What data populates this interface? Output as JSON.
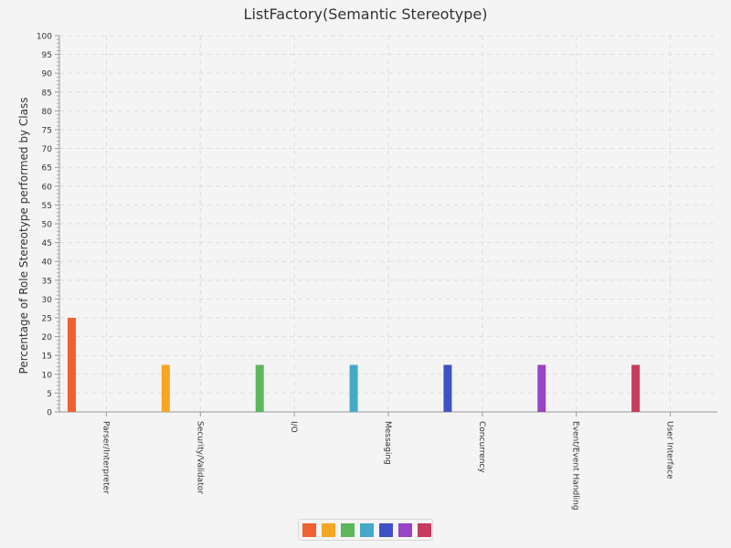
{
  "chart_data": {
    "type": "bar",
    "title": "ListFactory(Semantic Stereotype)",
    "xlabel": "",
    "ylabel": "Percentage of Role Stereotype performed by Class",
    "ylim": [
      0,
      100
    ],
    "y_major_step": 5,
    "grid": true,
    "legend_position": "bottom",
    "categories": [
      "Parser/Interpreter",
      "Security/Validator",
      "I/O",
      "Messaging",
      "Concurrency",
      "Event/Event Handling",
      "User Interface"
    ],
    "values": [
      25,
      12.5,
      12.5,
      12.5,
      12.5,
      12.5,
      12.5
    ],
    "colors": [
      "#f06030",
      "#f5a623",
      "#5cb85c",
      "#46a9c9",
      "#3f51c4",
      "#9a43c4",
      "#c73c5e"
    ]
  }
}
